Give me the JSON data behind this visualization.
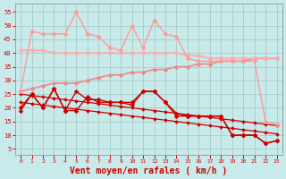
{
  "background_color": "#c8eaea",
  "grid_color": "#a0c8c0",
  "xlabel": "Vent moyen/en rafales ( km/h )",
  "xlabel_color": "#cc0000",
  "xlabel_fontsize": 7,
  "ylabel_ticks": [
    5,
    10,
    15,
    20,
    25,
    30,
    35,
    40,
    45,
    50,
    55
  ],
  "xticks": [
    0,
    1,
    2,
    3,
    4,
    5,
    6,
    7,
    8,
    9,
    10,
    11,
    12,
    13,
    14,
    15,
    16,
    17,
    18,
    19,
    20,
    21,
    22,
    23
  ],
  "xlim": [
    -0.5,
    23.5
  ],
  "ylim": [
    3,
    58
  ],
  "lines": [
    {
      "x": [
        0,
        1,
        2,
        3,
        4,
        5,
        6,
        7,
        8,
        9,
        10,
        11,
        12,
        13,
        14,
        15,
        16,
        17,
        18,
        19,
        20,
        21,
        22,
        23
      ],
      "y": [
        25,
        24.5,
        24,
        23.5,
        23,
        22.5,
        22,
        21.5,
        21,
        20.5,
        20,
        19.5,
        19,
        18.5,
        18,
        17.5,
        17,
        16.5,
        16,
        15.5,
        15,
        14.5,
        14,
        13.5
      ],
      "color": "#cc0000",
      "lw": 0.9,
      "marker": "D",
      "ms": 2.0
    },
    {
      "x": [
        0,
        1,
        2,
        3,
        4,
        5,
        6,
        7,
        8,
        9,
        10,
        11,
        12,
        13,
        14,
        15,
        16,
        17,
        18,
        19,
        20,
        21,
        22,
        23
      ],
      "y": [
        22,
        21.5,
        21,
        20.5,
        20,
        19.5,
        19,
        18.5,
        18,
        17.5,
        17,
        16.5,
        16,
        15.5,
        15,
        14.5,
        14,
        13.5,
        13,
        12.5,
        12,
        11.5,
        11,
        10.5
      ],
      "color": "#cc0000",
      "lw": 0.9,
      "marker": "D",
      "ms": 2.0
    },
    {
      "x": [
        0,
        1,
        2,
        3,
        4,
        5,
        6,
        7,
        8,
        9,
        10,
        11,
        12,
        13,
        14,
        15,
        16,
        17,
        18,
        19,
        20,
        21,
        22,
        23
      ],
      "y": [
        20,
        25,
        20,
        27,
        19,
        19,
        24,
        22,
        22,
        22,
        22,
        26,
        26,
        22,
        17,
        17,
        17,
        17,
        17,
        10,
        10,
        10,
        7,
        8
      ],
      "color": "#cc0000",
      "lw": 1.0,
      "marker": "D",
      "ms": 2.5
    },
    {
      "x": [
        0,
        1,
        2,
        3,
        4,
        5,
        6,
        7,
        8,
        9,
        10,
        11,
        12,
        13,
        14,
        15,
        16,
        17,
        18,
        19,
        20,
        21,
        22,
        23
      ],
      "y": [
        19,
        25,
        20,
        27,
        19,
        26,
        23,
        23,
        22,
        22,
        21,
        26,
        26,
        22,
        18,
        17,
        17,
        17,
        17,
        10,
        10,
        10,
        7,
        8
      ],
      "color": "#cc0000",
      "lw": 1.0,
      "marker": "D",
      "ms": 2.5
    },
    {
      "x": [
        0,
        1,
        2,
        3,
        4,
        5,
        6,
        7,
        8,
        9,
        10,
        11,
        12,
        13,
        14,
        15,
        16,
        17,
        18,
        19,
        20,
        21,
        22,
        23
      ],
      "y": [
        26,
        27,
        28,
        29,
        29,
        29,
        30,
        31,
        32,
        32,
        33,
        33,
        34,
        34,
        35,
        35,
        36,
        36,
        37,
        37,
        37,
        38,
        38,
        38
      ],
      "color": "#ee8888",
      "lw": 1.2,
      "marker": "D",
      "ms": 2.5
    },
    {
      "x": [
        0,
        1,
        2,
        3,
        4,
        5,
        6,
        7,
        8,
        9,
        10,
        11,
        12,
        13,
        14,
        15,
        16,
        17,
        18,
        19,
        20,
        21,
        22,
        23
      ],
      "y": [
        41,
        41,
        41,
        40,
        40,
        40,
        40,
        40,
        40,
        40,
        40,
        40,
        40,
        40,
        40,
        39,
        39,
        38,
        38,
        38,
        38,
        38,
        38,
        38
      ],
      "color": "#ffaaaa",
      "lw": 1.3,
      "marker": "D",
      "ms": 2.5
    },
    {
      "x": [
        0,
        1,
        2,
        3,
        4,
        5,
        6,
        7,
        8,
        9,
        10,
        11,
        12,
        13,
        14,
        15,
        16,
        17,
        18,
        19,
        20,
        21,
        22,
        23
      ],
      "y": [
        26,
        48,
        47,
        47,
        47,
        55,
        47,
        46,
        42,
        41,
        50,
        42,
        52,
        47,
        46,
        38,
        37,
        37,
        37,
        37,
        37,
        37,
        15,
        14
      ],
      "color": "#ff9999",
      "lw": 1.0,
      "marker": "D",
      "ms": 2.5
    }
  ]
}
